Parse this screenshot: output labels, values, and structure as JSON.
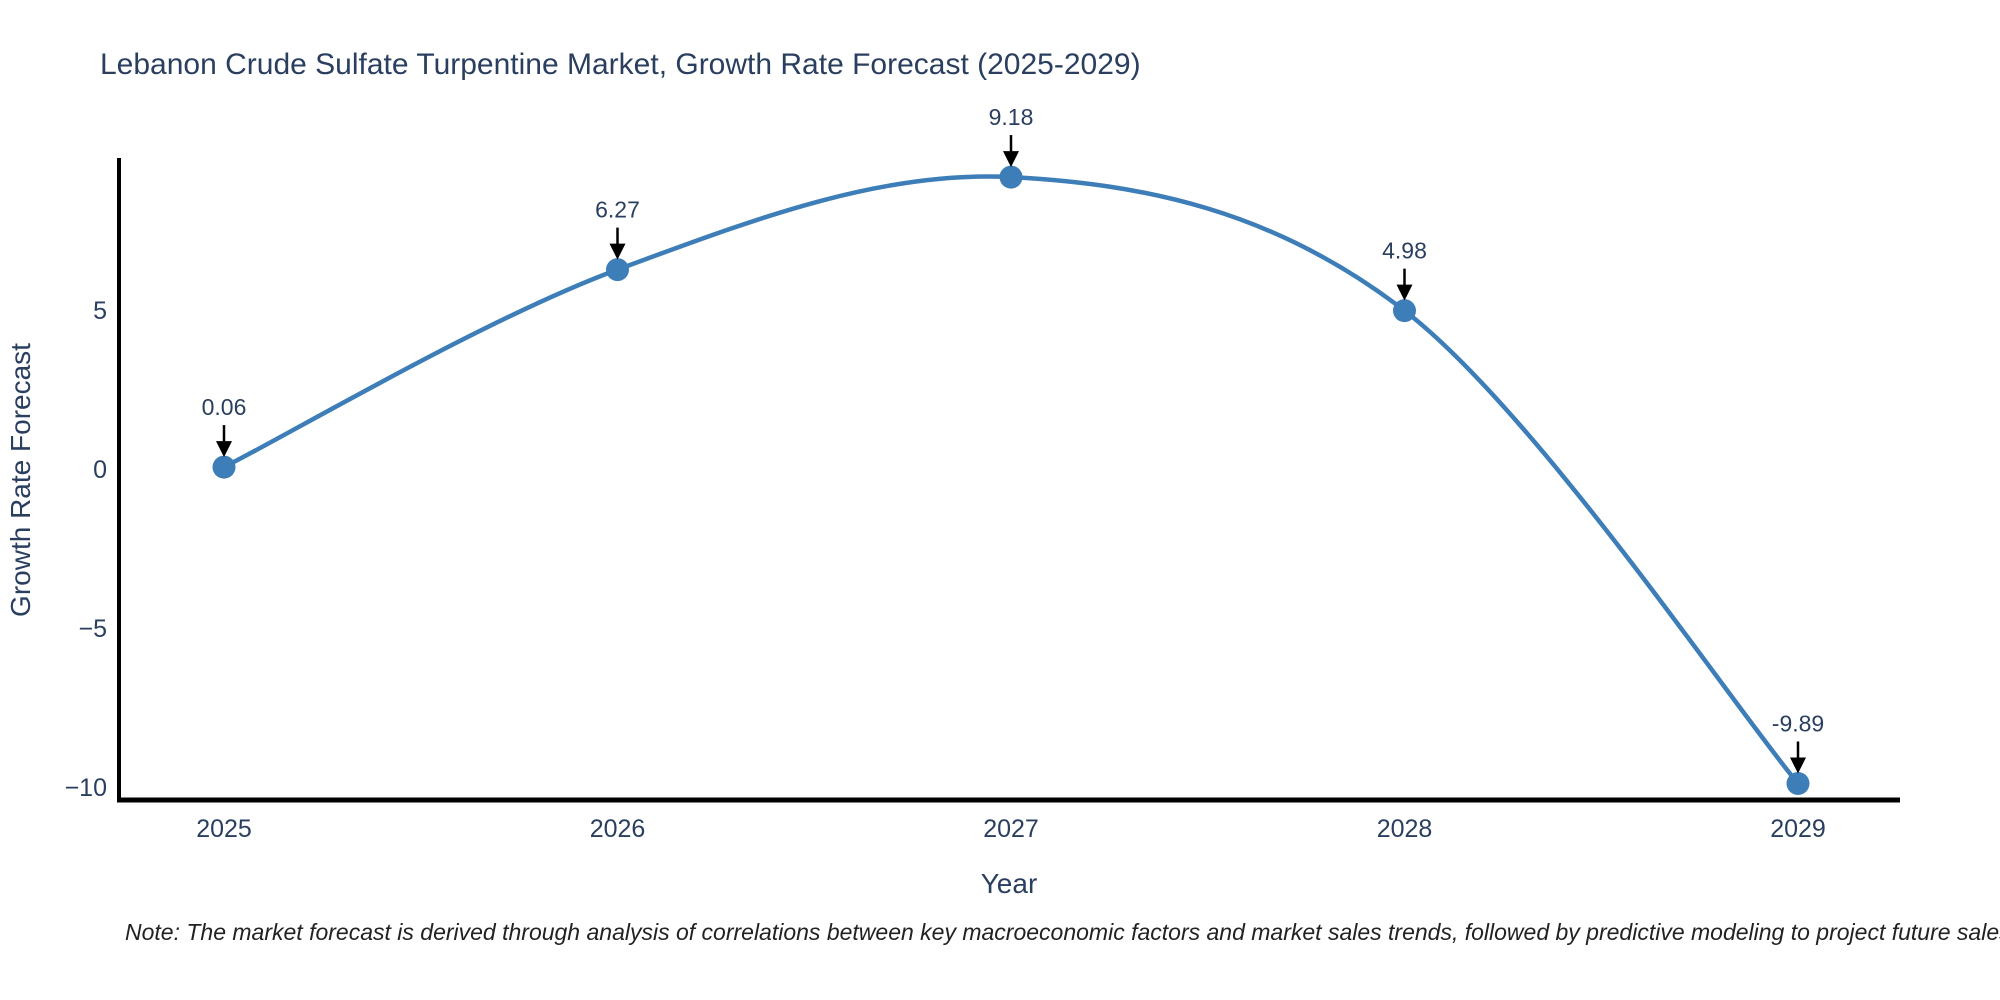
{
  "chart_data": {
    "type": "line",
    "title": "Lebanon Crude Sulfate Turpentine Market, Growth Rate Forecast (2025-2029)",
    "xlabel": "Year",
    "ylabel": "Growth Rate Forecast",
    "x": [
      2025,
      2026,
      2027,
      2028,
      2029
    ],
    "series": [
      {
        "name": "Growth Rate Forecast",
        "values": [
          0.06,
          6.27,
          9.18,
          4.98,
          -9.89
        ]
      }
    ],
    "point_labels": [
      "0.06",
      "6.27",
      "9.18",
      "4.98",
      "-9.89"
    ],
    "yticks": [
      5,
      0,
      -5,
      -10
    ],
    "ylim": [
      -10.6,
      9.8
    ],
    "grid": false,
    "legend_position": "none",
    "line_shape": "spline",
    "marker_style": "circle",
    "annotation_arrows": true,
    "footnote": "Note: The market forecast is derived through analysis of correlations between key macroeconomic factors and market sales trends, followed by predictive modeling to project future sales.",
    "colors": {
      "line": "#3d7eb8",
      "marker": "#3d7eb8",
      "text": "#2a3f5f",
      "axis_line": "#000000",
      "arrow": "#000000",
      "note_text": "#222222",
      "background": "#ffffff"
    }
  }
}
